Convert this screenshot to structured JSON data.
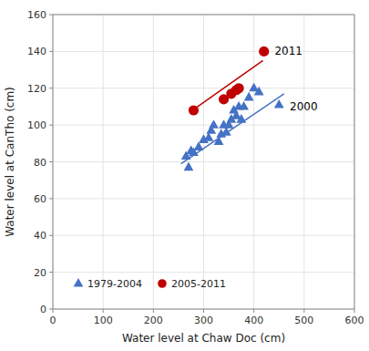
{
  "chart_data": {
    "type": "scatter",
    "xlabel": "Water level at Chaw Doc (cm)",
    "ylabel": "Water level at CanTho (cm)",
    "xlim": [
      0,
      600
    ],
    "ylim": [
      0,
      160
    ],
    "xticks": [
      0,
      100,
      200,
      300,
      400,
      500,
      600
    ],
    "yticks": [
      0,
      20,
      40,
      60,
      80,
      100,
      120,
      140,
      160
    ],
    "grid": true,
    "legend": "lower left",
    "series": [
      {
        "name": "1979-2004",
        "color": "#4472C4",
        "marker": "triangle",
        "x": [
          265,
          270,
          275,
          280,
          290,
          300,
          310,
          315,
          320,
          330,
          335,
          340,
          345,
          350,
          355,
          360,
          365,
          370,
          375,
          380,
          390,
          400,
          410,
          450
        ],
        "values": [
          83,
          77,
          86,
          85,
          88,
          92,
          93,
          97,
          100,
          91,
          95,
          100,
          96,
          100,
          103,
          108,
          105,
          110,
          103,
          110,
          115,
          120,
          118,
          111
        ]
      },
      {
        "name": "2005-2011",
        "color": "#C00000",
        "marker": "circle",
        "x": [
          280,
          340,
          355,
          365,
          370,
          420
        ],
        "values": [
          108,
          114,
          117,
          119,
          120,
          140
        ]
      },
      {
        "type": "line",
        "color": "#4472C4",
        "x": [
          255,
          460
        ],
        "values": [
          79,
          117
        ]
      },
      {
        "type": "line",
        "color": "#C00000",
        "x": [
          278,
          418
        ],
        "values": [
          108,
          135
        ]
      }
    ],
    "annotations": [
      {
        "text": "2011",
        "x": 425,
        "y": 140
      },
      {
        "text": "2000",
        "x": 455,
        "y": 110
      }
    ]
  }
}
